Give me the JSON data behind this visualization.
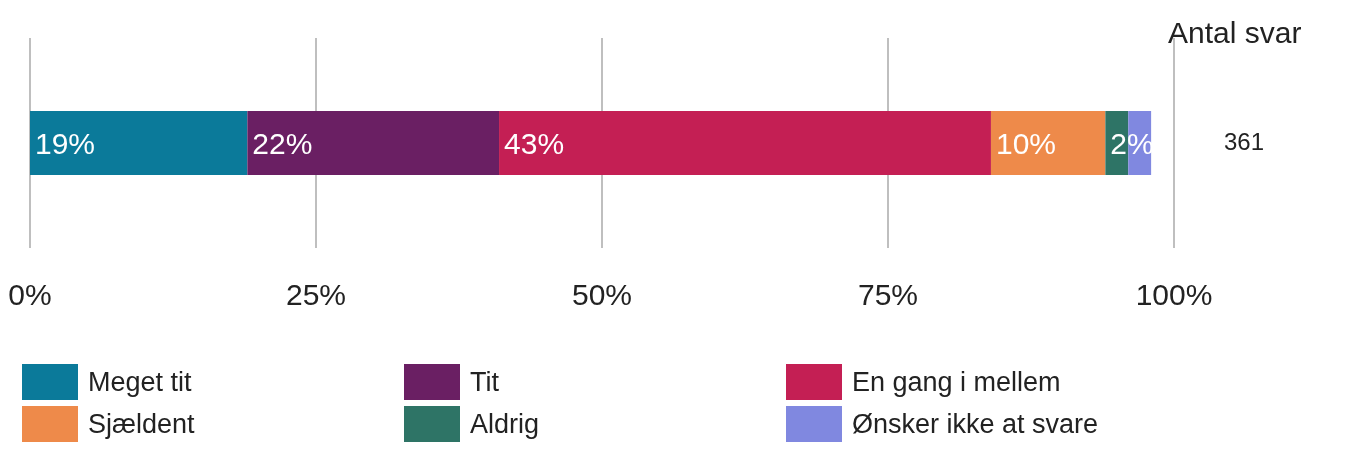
{
  "chart_data": {
    "type": "bar",
    "orientation": "horizontal",
    "stacked": true,
    "categories": [
      null
    ],
    "series": [
      {
        "name": "Meget tit",
        "color": "#0b7a9a",
        "values": [
          19
        ],
        "value_labels": [
          "19%"
        ]
      },
      {
        "name": "Tit",
        "color": "#6a1f63",
        "values": [
          22
        ],
        "value_labels": [
          "22%"
        ]
      },
      {
        "name": "En gang i mellem",
        "color": "#c41f54",
        "values": [
          43
        ],
        "value_labels": [
          "43%"
        ]
      },
      {
        "name": "Sjældent",
        "color": "#ee8a4a",
        "values": [
          10
        ],
        "value_labels": [
          "10%"
        ]
      },
      {
        "name": "Aldrig",
        "color": "#2e7466",
        "values": [
          2
        ],
        "value_labels": [
          "2%"
        ]
      },
      {
        "name": "Ønsker ikke at svare",
        "color": "#8088e0",
        "values": [
          2
        ],
        "value_labels": [
          null
        ]
      }
    ],
    "xlim": [
      0,
      100
    ],
    "xticks": [
      {
        "value": 0,
        "label": "0%"
      },
      {
        "value": 25,
        "label": "25%"
      },
      {
        "value": 50,
        "label": "50%"
      },
      {
        "value": 75,
        "label": "75%"
      },
      {
        "value": 100,
        "label": "100%"
      }
    ],
    "tick_labels": "x",
    "grid": "x",
    "legend": "bottom",
    "annotations": [
      "Antal svar",
      "361"
    ]
  }
}
